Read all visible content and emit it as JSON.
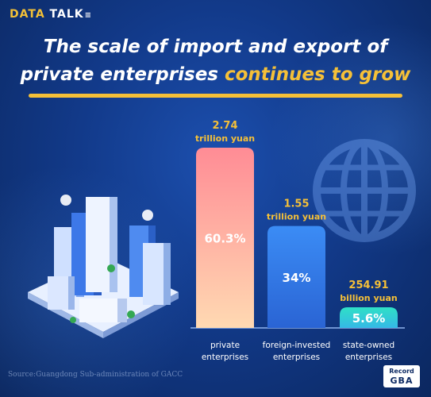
{
  "brand": {
    "word1": "DATA",
    "word2": "TALK"
  },
  "title": {
    "line1": "The scale of import and export of",
    "line2_plain": "private enterprises",
    "line2_highlight": "continues to grow"
  },
  "source": "Source:Guangdong Sub-administration of GACC",
  "logo": {
    "line1": "Record",
    "line2": "GBA"
  },
  "colors": {
    "background": "#123a8a",
    "highlight": "#f5c038",
    "bar_private": "#f58a8a",
    "bar_foreign": "#3f86f0",
    "bar_state": "#35d6c0"
  },
  "chart_data": {
    "type": "bar",
    "categories": [
      [
        "private",
        "enterprises"
      ],
      [
        "foreign-invested",
        "enterprises"
      ],
      [
        "state-owned",
        "enterprises"
      ]
    ],
    "values": [
      2.74,
      1.55,
      0.25491
    ],
    "value_labels": [
      [
        "2.74",
        "trillion yuan"
      ],
      [
        "1.55",
        "trillion yuan"
      ],
      [
        "254.91",
        "billion yuan"
      ]
    ],
    "shares": [
      "60.3%",
      "34%",
      "5.6%"
    ],
    "unit": "trillion yuan",
    "ylim": [
      0,
      2.74
    ],
    "grid": false,
    "legend": "none"
  }
}
